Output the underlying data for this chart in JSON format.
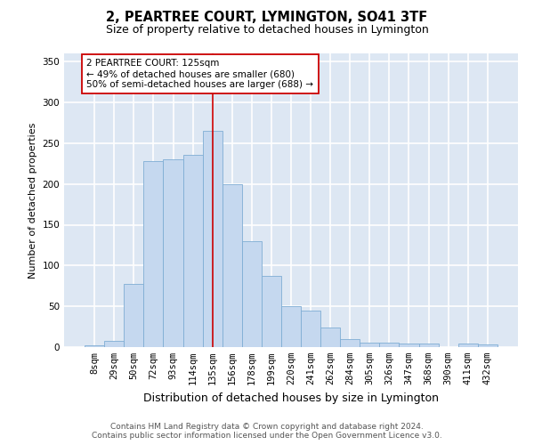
{
  "title_line1": "2, PEARTREE COURT, LYMINGTON, SO41 3TF",
  "title_line2": "Size of property relative to detached houses in Lymington",
  "xlabel": "Distribution of detached houses by size in Lymington",
  "ylabel": "Number of detached properties",
  "bar_labels": [
    "8sqm",
    "29sqm",
    "50sqm",
    "72sqm",
    "93sqm",
    "114sqm",
    "135sqm",
    "156sqm",
    "178sqm",
    "199sqm",
    "220sqm",
    "241sqm",
    "262sqm",
    "284sqm",
    "305sqm",
    "326sqm",
    "347sqm",
    "368sqm",
    "390sqm",
    "411sqm",
    "432sqm"
  ],
  "bar_heights": [
    2,
    8,
    77,
    228,
    230,
    236,
    265,
    200,
    130,
    87,
    50,
    45,
    24,
    10,
    6,
    6,
    4,
    4,
    0,
    4,
    3
  ],
  "bar_color": "#c5d8ef",
  "bar_edge_color": "#7fadd4",
  "vline_color": "#cc0000",
  "annotation_text": "2 PEARTREE COURT: 125sqm\n← 49% of detached houses are smaller (680)\n50% of semi-detached houses are larger (688) →",
  "annotation_box_color": "white",
  "annotation_box_edge": "#cc0000",
  "ylim_max": 360,
  "yticks": [
    0,
    50,
    100,
    150,
    200,
    250,
    300,
    350
  ],
  "bg_color": "#dde7f3",
  "grid_color": "white",
  "footer_line1": "Contains HM Land Registry data © Crown copyright and database right 2024.",
  "footer_line2": "Contains public sector information licensed under the Open Government Licence v3.0.",
  "title_fontsize": 10.5,
  "subtitle_fontsize": 9,
  "xlabel_fontsize": 9,
  "ylabel_fontsize": 8,
  "tick_fontsize": 7.5,
  "annot_fontsize": 7.5,
  "footer_fontsize": 6.5
}
